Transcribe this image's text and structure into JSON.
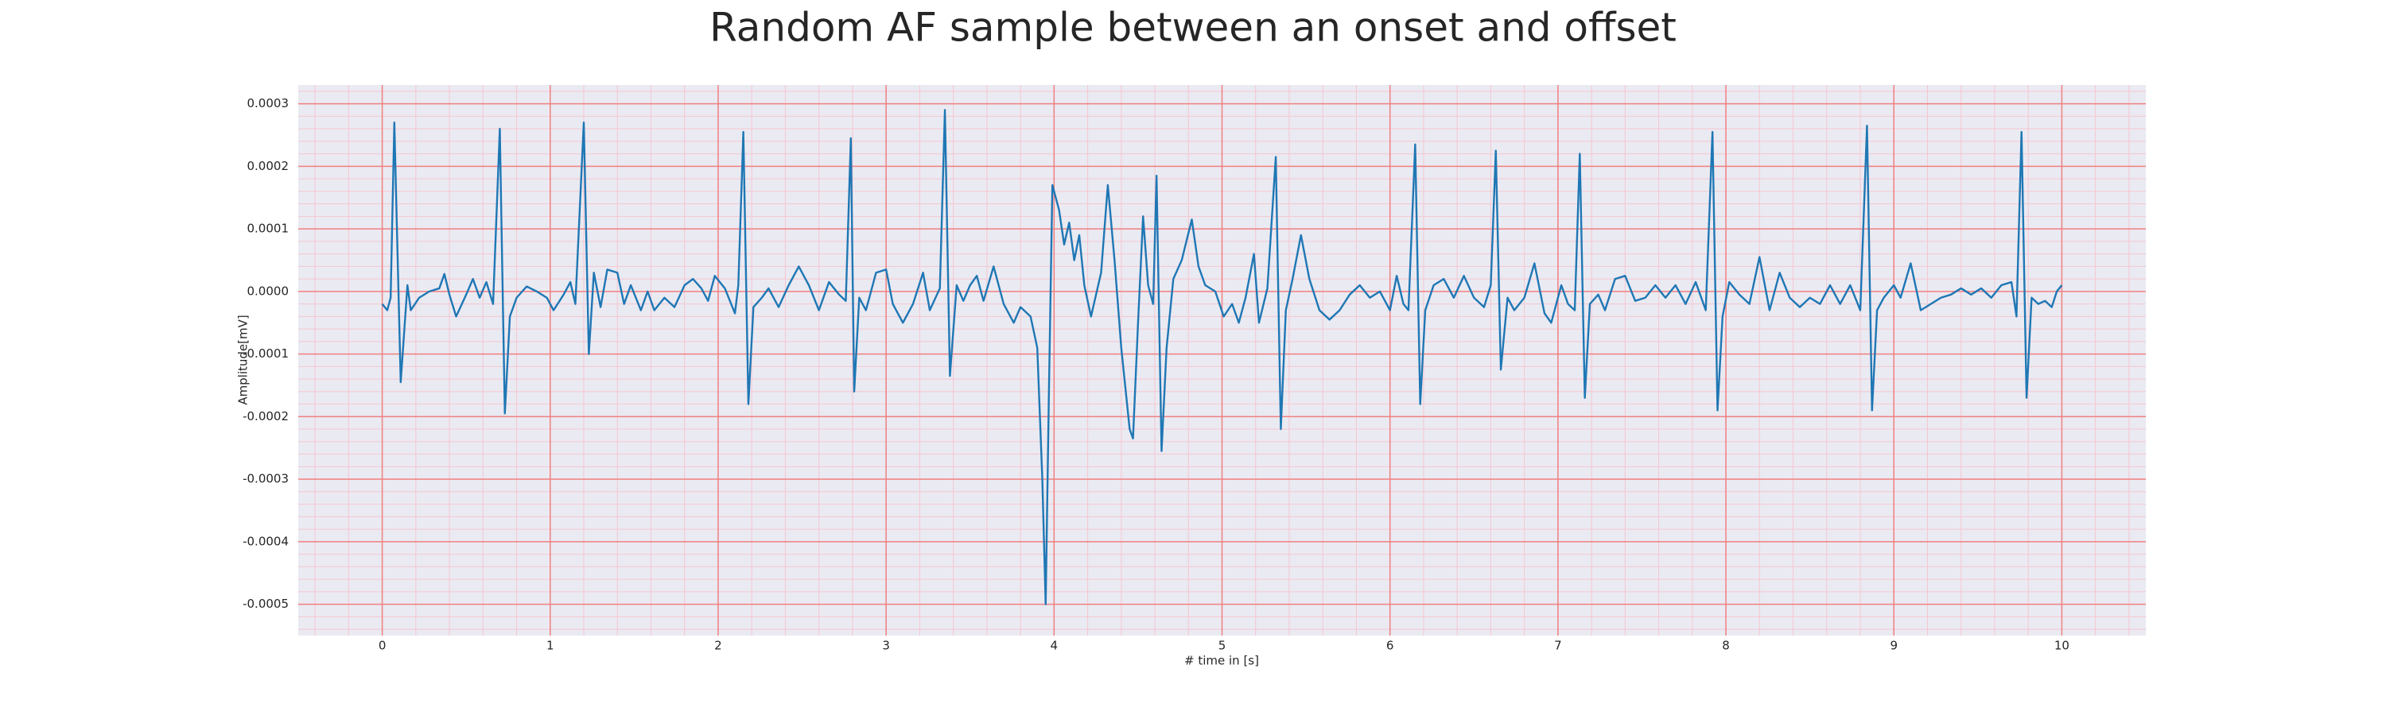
{
  "chart_data": {
    "type": "line",
    "title": "Random AF sample between an onset and offset",
    "xlabel": "# time in [s]",
    "ylabel": "Amplitude[mV]",
    "color": "#1f77b4",
    "background": "#eaeaf2",
    "grid": true,
    "grid_color": "#f08080",
    "minor_grid": true,
    "minor_grid_color": "#f5c6d0",
    "xlim": [
      -0.5,
      10.5
    ],
    "ylim": [
      -0.00055,
      0.00033
    ],
    "xticks": [
      0,
      1,
      2,
      3,
      4,
      5,
      6,
      7,
      8,
      9,
      10
    ],
    "yticks": [
      {
        "value": -0.0005,
        "label": "-0.0005"
      },
      {
        "value": -0.0004,
        "label": "-0.0004"
      },
      {
        "value": -0.0003,
        "label": "-0.0003"
      },
      {
        "value": -0.0002,
        "label": "-0.0002"
      },
      {
        "value": -0.0001,
        "label": "-0.0001"
      },
      {
        "value": 0,
        "label": "0.0000"
      },
      {
        "value": 0.0001,
        "label": "0.0001"
      },
      {
        "value": 0.0002,
        "label": "0.0002"
      },
      {
        "value": 0.0003,
        "label": "0.0003"
      }
    ],
    "x": [
      0,
      0.03,
      0.05,
      0.072,
      0.11,
      0.15,
      0.17,
      0.22,
      0.28,
      0.34,
      0.37,
      0.4,
      0.44,
      0.5,
      0.54,
      0.58,
      0.62,
      0.66,
      0.7,
      0.73,
      0.76,
      0.8,
      0.86,
      0.92,
      0.98,
      1.02,
      1.08,
      1.12,
      1.15,
      1.2,
      1.23,
      1.26,
      1.3,
      1.34,
      1.4,
      1.44,
      1.48,
      1.54,
      1.58,
      1.62,
      1.68,
      1.74,
      1.8,
      1.85,
      1.9,
      1.94,
      1.98,
      2.04,
      2.1,
      2.12,
      2.15,
      2.18,
      2.21,
      2.26,
      2.3,
      2.36,
      2.42,
      2.48,
      2.54,
      2.6,
      2.66,
      2.72,
      2.76,
      2.79,
      2.81,
      2.84,
      2.88,
      2.94,
      3.0,
      3.04,
      3.1,
      3.16,
      3.22,
      3.26,
      3.32,
      3.35,
      3.38,
      3.42,
      3.46,
      3.5,
      3.54,
      3.58,
      3.64,
      3.7,
      3.76,
      3.8,
      3.86,
      3.9,
      3.93,
      3.95,
      3.97,
      3.99,
      4.03,
      4.06,
      4.09,
      4.12,
      4.15,
      4.18,
      4.22,
      4.28,
      4.32,
      4.36,
      4.4,
      4.45,
      4.47,
      4.5,
      4.53,
      4.56,
      4.59,
      4.61,
      4.64,
      4.67,
      4.71,
      4.76,
      4.82,
      4.86,
      4.9,
      4.96,
      5.01,
      5.06,
      5.1,
      5.14,
      5.19,
      5.22,
      5.27,
      5.32,
      5.35,
      5.38,
      5.42,
      5.47,
      5.52,
      5.58,
      5.64,
      5.7,
      5.76,
      5.82,
      5.88,
      5.94,
      6.0,
      6.04,
      6.08,
      6.11,
      6.15,
      6.18,
      6.21,
      6.26,
      6.32,
      6.38,
      6.44,
      6.5,
      6.56,
      6.6,
      6.63,
      6.66,
      6.7,
      6.74,
      6.8,
      6.86,
      6.92,
      6.96,
      7.02,
      7.06,
      7.1,
      7.13,
      7.16,
      7.19,
      7.24,
      7.28,
      7.34,
      7.4,
      7.46,
      7.52,
      7.58,
      7.64,
      7.7,
      7.76,
      7.82,
      7.88,
      7.92,
      7.95,
      7.98,
      8.02,
      8.08,
      8.14,
      8.2,
      8.26,
      8.32,
      8.38,
      8.44,
      8.5,
      8.56,
      8.62,
      8.68,
      8.74,
      8.8,
      8.84,
      8.87,
      8.9,
      8.94,
      9.0,
      9.04,
      9.1,
      9.16,
      9.22,
      9.28,
      9.34,
      9.4,
      9.46,
      9.52,
      9.58,
      9.64,
      9.7,
      9.73,
      9.76,
      9.79,
      9.82,
      9.86,
      9.9,
      9.94,
      9.97,
      10.0
    ],
    "values": [
      -2e-05,
      -3e-05,
      -1e-05,
      0.00027,
      -0.000145,
      1e-05,
      -3e-05,
      -1e-05,
      0,
      5e-06,
      2.8e-05,
      -5e-06,
      -4e-05,
      -5e-06,
      2e-05,
      -1e-05,
      1.5e-05,
      -2e-05,
      0.00026,
      -0.000195,
      -4e-05,
      -1e-05,
      8e-06,
      0,
      -1e-05,
      -3e-05,
      -5e-06,
      1.5e-05,
      -2e-05,
      0.00027,
      -0.0001,
      3e-05,
      -2.5e-05,
      3.5e-05,
      3e-05,
      -2e-05,
      1e-05,
      -3e-05,
      0,
      -3e-05,
      -1e-05,
      -2.5e-05,
      1e-05,
      2e-05,
      5e-06,
      -1.5e-05,
      2.5e-05,
      5e-06,
      -3.5e-05,
      1e-05,
      0.000255,
      -0.00018,
      -2.5e-05,
      -1e-05,
      5e-06,
      -2.5e-05,
      1e-05,
      4e-05,
      1e-05,
      -3e-05,
      1.5e-05,
      -5e-06,
      -1.5e-05,
      0.000245,
      -0.00016,
      -1e-05,
      -3e-05,
      3e-05,
      3.5e-05,
      -2e-05,
      -5e-05,
      -2e-05,
      3e-05,
      -3e-05,
      5e-06,
      0.00029,
      -0.000135,
      1e-05,
      -1.5e-05,
      1e-05,
      2.5e-05,
      -1.5e-05,
      4e-05,
      -2e-05,
      -5e-05,
      -2.5e-05,
      -4e-05,
      -9e-05,
      -0.0003,
      -0.0005,
      -0.00015,
      0.00017,
      0.00013,
      7.5e-05,
      0.00011,
      5e-05,
      9e-05,
      1e-05,
      -4e-05,
      3e-05,
      0.00017,
      5e-05,
      -9e-05,
      -0.00022,
      -0.000235,
      -5e-05,
      0.00012,
      1e-05,
      -2e-05,
      0.000185,
      -0.000255,
      -9e-05,
      2e-05,
      5e-05,
      0.000115,
      4e-05,
      1e-05,
      0,
      -4e-05,
      -2e-05,
      -5e-05,
      -1e-05,
      6e-05,
      -5e-05,
      5e-06,
      0.000215,
      -0.00022,
      -3e-05,
      2e-05,
      9e-05,
      2e-05,
      -3e-05,
      -4.5e-05,
      -3e-05,
      -5e-06,
      1e-05,
      -1e-05,
      0,
      -3e-05,
      2.5e-05,
      -2e-05,
      -3e-05,
      0.000235,
      -0.00018,
      -3e-05,
      1e-05,
      2e-05,
      -1e-05,
      2.5e-05,
      -1e-05,
      -2.5e-05,
      1e-05,
      0.000225,
      -0.000125,
      -1e-05,
      -3e-05,
      -1e-05,
      4.5e-05,
      -3.5e-05,
      -5e-05,
      1e-05,
      -2e-05,
      -3e-05,
      0.00022,
      -0.00017,
      -2e-05,
      -5e-06,
      -3e-05,
      2e-05,
      2.5e-05,
      -1.5e-05,
      -1e-05,
      1e-05,
      -1e-05,
      1e-05,
      -2e-05,
      1.5e-05,
      -3e-05,
      0.000255,
      -0.00019,
      -4e-05,
      1.5e-05,
      -5e-06,
      -2e-05,
      5.5e-05,
      -3e-05,
      3e-05,
      -1e-05,
      -2.5e-05,
      -1e-05,
      -2e-05,
      1e-05,
      -2e-05,
      1e-05,
      -3e-05,
      0.000265,
      -0.00019,
      -3e-05,
      -1e-05,
      1e-05,
      -1e-05,
      4.5e-05,
      -3e-05,
      -2e-05,
      -1e-05,
      -5e-06,
      5e-06,
      -5e-06,
      5e-06,
      -1e-05,
      1e-05,
      1.5e-05,
      -4e-05,
      0.000255,
      -0.00017,
      -1e-05,
      -2e-05,
      -1.5e-05,
      -2.5e-05,
      0,
      1e-05
    ]
  }
}
